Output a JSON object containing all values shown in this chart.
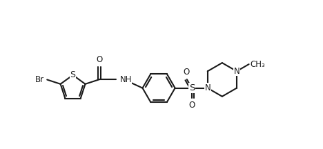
{
  "bg_color": "#ffffff",
  "line_color": "#1a1a1a",
  "line_width": 1.5,
  "font_size": 8.5,
  "figsize": [
    4.68,
    2.16
  ],
  "dpi": 100,
  "xlim": [
    0,
    9.5
  ],
  "ylim": [
    0,
    5.5
  ]
}
